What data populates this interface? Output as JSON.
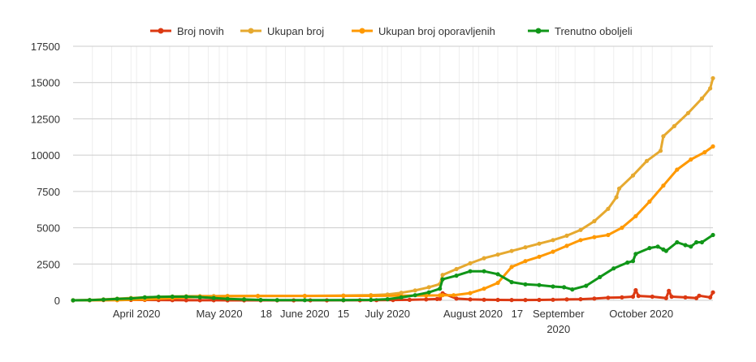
{
  "chart_data": {
    "type": "line",
    "title": "",
    "xlabel": "",
    "ylabel": "",
    "ylim": [
      0,
      17500
    ],
    "yticks": [
      0,
      2500,
      5000,
      7500,
      10000,
      12500,
      15000,
      17500
    ],
    "ytick_labels": [
      "0",
      "2500",
      "5000",
      "7500",
      "10000",
      "12500",
      "15000",
      "17500"
    ],
    "xlim": [
      "2020-03-09",
      "2020-10-27"
    ],
    "xticks": [
      {
        "date": "2020-04-01",
        "label": "April 2020"
      },
      {
        "date": "2020-05-01",
        "label": "May 2020"
      },
      {
        "date": "2020-05-18",
        "label": "18"
      },
      {
        "date": "2020-06-01",
        "label": "June 2020"
      },
      {
        "date": "2020-06-15",
        "label": "15"
      },
      {
        "date": "2020-07-01",
        "label": "July 2020"
      },
      {
        "date": "2020-08-01",
        "label": "August 2020"
      },
      {
        "date": "2020-08-17",
        "label": "17"
      },
      {
        "date": "2020-09-01",
        "label": "September 2020"
      },
      {
        "date": "2020-10-01",
        "label": "October 2020"
      }
    ],
    "grid": true,
    "legend_position": "top",
    "series": [
      {
        "name": "Broj novih",
        "color": "#dc3912",
        "x": [
          "2020-03-09",
          "2020-03-15",
          "2020-03-20",
          "2020-03-25",
          "2020-03-30",
          "2020-04-04",
          "2020-04-09",
          "2020-04-14",
          "2020-04-19",
          "2020-04-24",
          "2020-04-29",
          "2020-05-04",
          "2020-05-10",
          "2020-05-16",
          "2020-05-22",
          "2020-05-28",
          "2020-06-03",
          "2020-06-09",
          "2020-06-15",
          "2020-06-21",
          "2020-06-27",
          "2020-07-03",
          "2020-07-09",
          "2020-07-15",
          "2020-07-19",
          "2020-07-20",
          "2020-07-21",
          "2020-07-26",
          "2020-07-31",
          "2020-08-05",
          "2020-08-10",
          "2020-08-15",
          "2020-08-20",
          "2020-08-25",
          "2020-08-30",
          "2020-09-04",
          "2020-09-09",
          "2020-09-14",
          "2020-09-19",
          "2020-09-24",
          "2020-09-28",
          "2020-09-29",
          "2020-09-30",
          "2020-10-05",
          "2020-10-10",
          "2020-10-11",
          "2020-10-12",
          "2020-10-17",
          "2020-10-21",
          "2020-10-22",
          "2020-10-26",
          "2020-10-27"
        ],
        "values": [
          0,
          5,
          15,
          25,
          30,
          28,
          20,
          10,
          6,
          4,
          3,
          2,
          2,
          2,
          1,
          1,
          1,
          2,
          3,
          5,
          10,
          20,
          35,
          60,
          90,
          100,
          480,
          120,
          60,
          40,
          30,
          25,
          25,
          30,
          40,
          60,
          80,
          120,
          180,
          200,
          250,
          700,
          300,
          250,
          150,
          650,
          250,
          200,
          150,
          320,
          200,
          550
        ]
      },
      {
        "name": "Ukupan broj",
        "color": "#e6a92f",
        "x": [
          "2020-03-09",
          "2020-03-15",
          "2020-03-20",
          "2020-03-25",
          "2020-03-30",
          "2020-04-04",
          "2020-04-09",
          "2020-04-14",
          "2020-04-19",
          "2020-04-24",
          "2020-04-29",
          "2020-05-04",
          "2020-05-15",
          "2020-06-01",
          "2020-06-15",
          "2020-06-25",
          "2020-07-01",
          "2020-07-06",
          "2020-07-11",
          "2020-07-16",
          "2020-07-20",
          "2020-07-21",
          "2020-07-26",
          "2020-07-31",
          "2020-08-05",
          "2020-08-10",
          "2020-08-15",
          "2020-08-20",
          "2020-08-25",
          "2020-08-30",
          "2020-09-04",
          "2020-09-09",
          "2020-09-14",
          "2020-09-19",
          "2020-09-22",
          "2020-09-23",
          "2020-09-28",
          "2020-10-03",
          "2020-10-08",
          "2020-10-09",
          "2020-10-13",
          "2020-10-18",
          "2020-10-23",
          "2020-10-26",
          "2020-10-27"
        ],
        "values": [
          0,
          20,
          60,
          110,
          160,
          200,
          235,
          260,
          280,
          290,
          295,
          300,
          305,
          310,
          330,
          360,
          400,
          520,
          680,
          900,
          1120,
          1750,
          2150,
          2550,
          2900,
          3150,
          3400,
          3650,
          3900,
          4150,
          4450,
          4850,
          5450,
          6300,
          7100,
          7700,
          8600,
          9600,
          10300,
          11300,
          12000,
          12900,
          13900,
          14600,
          15300
        ]
      },
      {
        "name": "Ukupan broj oporavljenih",
        "color": "#ff9900",
        "x": [
          "2020-03-09",
          "2020-03-25",
          "2020-04-04",
          "2020-04-14",
          "2020-04-24",
          "2020-05-04",
          "2020-05-15",
          "2020-06-01",
          "2020-06-15",
          "2020-06-25",
          "2020-07-05",
          "2020-07-15",
          "2020-07-20",
          "2020-07-21",
          "2020-07-25",
          "2020-07-31",
          "2020-08-05",
          "2020-08-10",
          "2020-08-15",
          "2020-08-20",
          "2020-08-25",
          "2020-08-30",
          "2020-09-04",
          "2020-09-09",
          "2020-09-14",
          "2020-09-19",
          "2020-09-24",
          "2020-09-29",
          "2020-10-04",
          "2020-10-09",
          "2020-10-14",
          "2020-10-19",
          "2020-10-24",
          "2020-10-27"
        ],
        "values": [
          0,
          10,
          60,
          150,
          240,
          280,
          290,
          300,
          305,
          310,
          320,
          330,
          340,
          350,
          350,
          500,
          800,
          1200,
          2300,
          2700,
          3000,
          3350,
          3750,
          4150,
          4350,
          4500,
          5000,
          5800,
          6800,
          7900,
          9000,
          9700,
          10200,
          10600
        ]
      },
      {
        "name": "Trenutno oboljeli",
        "color": "#109618",
        "x": [
          "2020-03-09",
          "2020-03-15",
          "2020-03-20",
          "2020-03-25",
          "2020-03-30",
          "2020-04-04",
          "2020-04-09",
          "2020-04-14",
          "2020-04-19",
          "2020-04-24",
          "2020-04-29",
          "2020-05-04",
          "2020-05-10",
          "2020-05-16",
          "2020-05-22",
          "2020-06-01",
          "2020-06-15",
          "2020-06-25",
          "2020-07-01",
          "2020-07-06",
          "2020-07-11",
          "2020-07-16",
          "2020-07-20",
          "2020-07-21",
          "2020-07-26",
          "2020-07-31",
          "2020-08-05",
          "2020-08-10",
          "2020-08-15",
          "2020-08-20",
          "2020-08-25",
          "2020-08-30",
          "2020-09-03",
          "2020-09-06",
          "2020-09-11",
          "2020-09-16",
          "2020-09-21",
          "2020-09-26",
          "2020-09-28",
          "2020-09-29",
          "2020-10-04",
          "2020-10-07",
          "2020-10-09",
          "2020-10-10",
          "2020-10-14",
          "2020-10-17",
          "2020-10-19",
          "2020-10-21",
          "2020-10-23",
          "2020-10-27"
        ],
        "values": [
          0,
          15,
          50,
          100,
          130,
          200,
          240,
          250,
          250,
          220,
          160,
          100,
          60,
          30,
          15,
          10,
          15,
          30,
          80,
          200,
          350,
          550,
          800,
          1450,
          1700,
          2000,
          2000,
          1800,
          1250,
          1100,
          1050,
          950,
          900,
          750,
          1000,
          1600,
          2200,
          2600,
          2700,
          3200,
          3600,
          3700,
          3500,
          3400,
          4000,
          3800,
          3700,
          4000,
          4000,
          4500
        ]
      }
    ]
  }
}
